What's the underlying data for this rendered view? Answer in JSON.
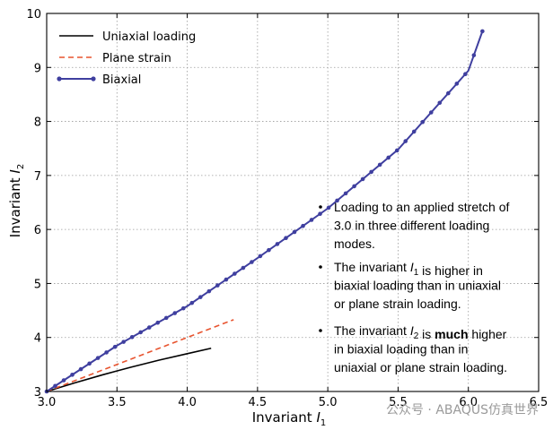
{
  "chart_data": {
    "type": "line",
    "title": "",
    "xlabel": {
      "text": "Invariant ",
      "symbol": "I",
      "subscript": "1"
    },
    "ylabel": {
      "text": "Invariant ",
      "symbol": "I",
      "subscript": "2"
    },
    "xlim": [
      3.0,
      6.5
    ],
    "ylim": [
      3,
      10
    ],
    "xticks": [
      3.0,
      3.5,
      4.0,
      4.5,
      5.0,
      5.5,
      6.0,
      6.5
    ],
    "xtick_labels": [
      "3.0",
      "3.5",
      "4.0",
      "4.5",
      "5.0",
      "5.5",
      "6.0",
      "6.5"
    ],
    "yticks": [
      3,
      4,
      5,
      6,
      7,
      8,
      9,
      10
    ],
    "ytick_labels": [
      "3",
      "4",
      "5",
      "6",
      "7",
      "8",
      "9",
      "10"
    ],
    "grid": true,
    "legend_position": "top-left",
    "series": [
      {
        "name": "Uniaxial loading",
        "style": "solid",
        "color": "#000000",
        "x": [
          3.0,
          3.2,
          3.4,
          3.6,
          3.8,
          4.0,
          4.17
        ],
        "y": [
          3.0,
          3.16,
          3.31,
          3.45,
          3.58,
          3.7,
          3.8
        ]
      },
      {
        "name": "Plane strain",
        "style": "dashed",
        "color": "#e8542f",
        "x": [
          3.0,
          3.33,
          3.67,
          4.0,
          4.33
        ],
        "y": [
          3.0,
          3.33,
          3.67,
          4.0,
          4.33
        ]
      },
      {
        "name": "Biaxial",
        "style": "line-dots",
        "color": "#3f3f9f",
        "x": [
          3.0,
          3.5,
          4.0,
          4.5,
          5.0,
          5.5,
          6.0,
          6.1
        ],
        "y": [
          3.0,
          3.85,
          4.58,
          5.47,
          6.39,
          7.48,
          8.94,
          9.67
        ]
      }
    ],
    "annotations": [
      {
        "lines": [
          [
            {
              "t": "Loading to an applied stretch of"
            }
          ],
          [
            {
              "t": "3.0 in three different loading"
            }
          ],
          [
            {
              "t": "modes."
            }
          ]
        ]
      },
      {
        "lines": [
          [
            {
              "t": "The invariant "
            },
            {
              "t": "I",
              "italic": true
            },
            {
              "t": "1",
              "sub": true
            },
            {
              "t": " is higher in"
            }
          ],
          [
            {
              "t": "biaxial loading than in uniaxial"
            }
          ],
          [
            {
              "t": "or plane strain loading."
            }
          ]
        ]
      },
      {
        "lines": [
          [
            {
              "t": "The invariant "
            },
            {
              "t": "I",
              "italic": true
            },
            {
              "t": "2",
              "sub": true
            },
            {
              "t": " is "
            },
            {
              "t": "much",
              "bold": true
            },
            {
              "t": " higher"
            }
          ],
          [
            {
              "t": "in biaxial loading than in"
            }
          ],
          [
            {
              "t": "uniaxial or plane strain loading."
            }
          ]
        ]
      }
    ]
  },
  "watermark": "公众号 · ABAQUS仿真世界"
}
